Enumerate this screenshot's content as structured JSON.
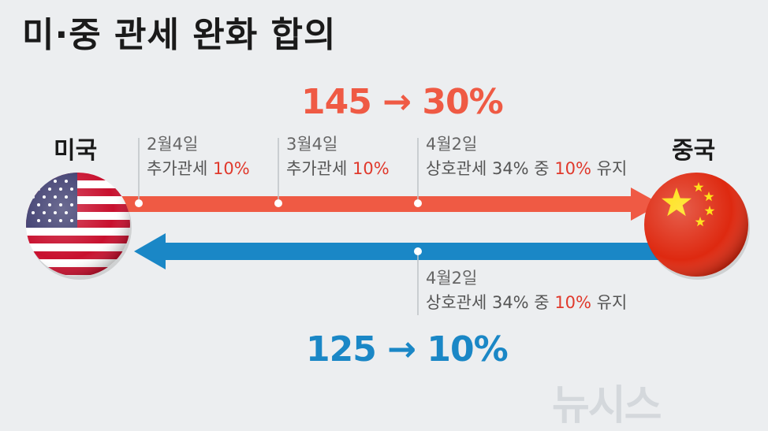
{
  "title": "미·중 관세 완화 합의",
  "us": {
    "label": "미국",
    "rate_change": "145 → 30%",
    "events": [
      {
        "date": "2월4일",
        "text": "추가관세 ",
        "highlight": "10%",
        "suffix": ""
      },
      {
        "date": "3월4일",
        "text": "추가관세 ",
        "highlight": "10%",
        "suffix": ""
      },
      {
        "date": "4월2일",
        "text": "상호관세 34% 중 ",
        "highlight": "10%",
        "suffix": " 유지"
      }
    ]
  },
  "china": {
    "label": "중국",
    "rate_change": "125 → 10%",
    "events": [
      {
        "date": "4월2일",
        "text": "상호관세 34% 중 ",
        "highlight": "10%",
        "suffix": " 유지"
      }
    ]
  },
  "colors": {
    "us_arrow": "#ef5a44",
    "china_arrow": "#1a87c6",
    "highlight": "#e0392c",
    "background": "#eceef0"
  },
  "icons": {
    "us_flag": "us-flag-icon",
    "china_flag": "china-flag-icon"
  },
  "watermark": "뉴시스"
}
